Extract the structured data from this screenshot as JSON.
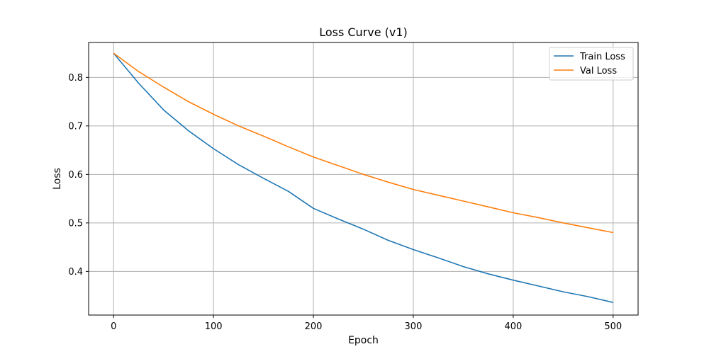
{
  "chart_data": {
    "type": "line",
    "title": "Loss Curve (v1)",
    "xlabel": "Epoch",
    "ylabel": "Loss",
    "xlim": [
      -25,
      525
    ],
    "ylim": [
      0.31,
      0.872
    ],
    "xticks": [
      0,
      100,
      200,
      300,
      400,
      500
    ],
    "yticks": [
      0.4,
      0.5,
      0.6,
      0.7,
      0.8
    ],
    "xtick_labels": [
      "0",
      "100",
      "200",
      "300",
      "400",
      "500"
    ],
    "ytick_labels": [
      "0.4",
      "0.5",
      "0.6",
      "0.7",
      "0.8"
    ],
    "grid": true,
    "legend_position": "top-right",
    "x": [
      0,
      25,
      50,
      75,
      100,
      125,
      150,
      175,
      200,
      225,
      250,
      275,
      300,
      325,
      350,
      375,
      400,
      425,
      450,
      475,
      500
    ],
    "series": [
      {
        "name": "Train Loss",
        "color": "#1f77b4",
        "values": [
          0.85,
          0.788,
          0.733,
          0.69,
          0.653,
          0.62,
          0.592,
          0.565,
          0.53,
          0.508,
          0.487,
          0.464,
          0.445,
          0.428,
          0.41,
          0.395,
          0.382,
          0.37,
          0.358,
          0.348,
          0.336
        ]
      },
      {
        "name": "Val Loss",
        "color": "#ff7f0e",
        "values": [
          0.85,
          0.812,
          0.78,
          0.75,
          0.724,
          0.7,
          0.679,
          0.657,
          0.636,
          0.618,
          0.6,
          0.584,
          0.569,
          0.557,
          0.545,
          0.533,
          0.521,
          0.511,
          0.5,
          0.49,
          0.48
        ]
      }
    ]
  }
}
